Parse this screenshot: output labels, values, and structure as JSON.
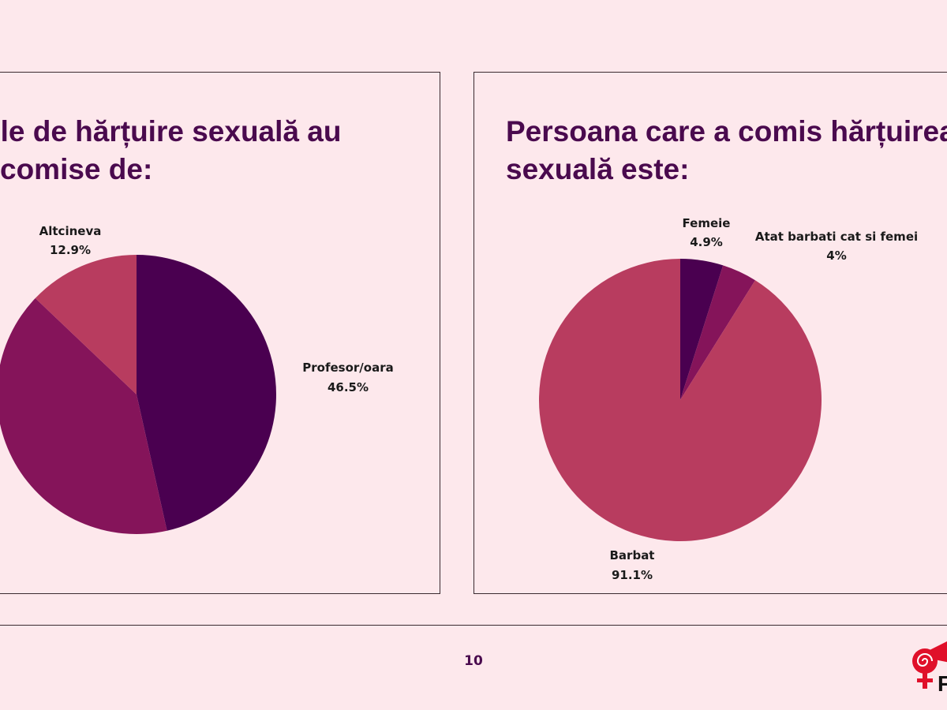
{
  "colors": {
    "dark": "#4a0050",
    "mid": "#85145a",
    "pink": "#b83c5f",
    "title": "#4a0a4e"
  },
  "page_number": "10",
  "chart_data": [
    {
      "type": "pie",
      "title": "ele de hărțuire sexuală au comise de:",
      "title_lines": [
        "ele de hărțuire sexuală au",
        "comise de:"
      ],
      "slices": [
        {
          "label": "Profesor/oara",
          "value": 46.5,
          "display": "46.5%",
          "color": "#4a0050"
        },
        {
          "label": "",
          "value": 40.6,
          "display": "",
          "color": "#85145a"
        },
        {
          "label": "Altcineva",
          "value": 12.9,
          "display": "12.9%",
          "color": "#b83c5f"
        }
      ]
    },
    {
      "type": "pie",
      "title": "Persoana care a comis hărțuirea sexuală este:",
      "title_lines": [
        "Persoana care a comis hărțuirea",
        "sexuală este:"
      ],
      "slices": [
        {
          "label": "Femeie",
          "value": 4.9,
          "display": "4.9%",
          "color": "#4a0050"
        },
        {
          "label": "Atat barbati cat si femei",
          "value": 4,
          "display": "4%",
          "color": "#85145a"
        },
        {
          "label": "Barbat",
          "value": 91.1,
          "display": "91.1%",
          "color": "#b83c5f"
        }
      ]
    }
  ]
}
